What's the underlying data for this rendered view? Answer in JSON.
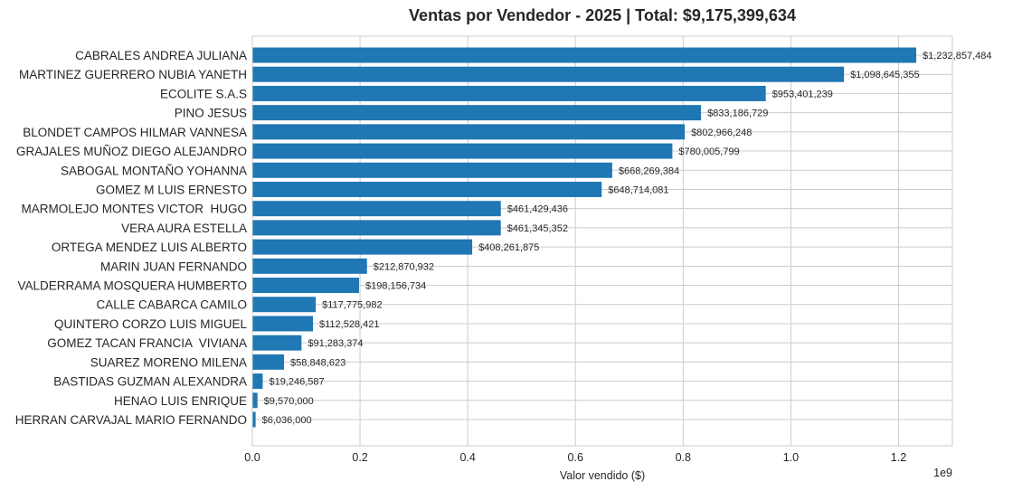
{
  "chart_data": {
    "type": "bar",
    "orientation": "horizontal",
    "title": "Ventas por Vendedor - 2025 | Total: $9,175,399,634",
    "xlabel": "Valor vendido ($)",
    "ylabel": "",
    "x_scale_note": "1e9",
    "xlim": [
      0,
      1.3
    ],
    "xticks": [
      0.0,
      0.2,
      0.4,
      0.6,
      0.8,
      1.0,
      1.2
    ],
    "xtick_labels": [
      "0.0",
      "0.2",
      "0.4",
      "0.6",
      "0.8",
      "1.0",
      "1.2"
    ],
    "grid": true,
    "bar_color": "#1f77b4",
    "categories": [
      "CABRALES ANDREA JULIANA",
      "MARTINEZ GUERRERO NUBIA YANETH",
      "ECOLITE S.A.S",
      "PINO JESUS",
      "BLONDET CAMPOS HILMAR VANNESA",
      "GRAJALES MUÑOZ DIEGO ALEJANDRO",
      "SABOGAL MONTAÑO YOHANNA",
      "GOMEZ M LUIS ERNESTO",
      "MARMOLEJO MONTES VICTOR  HUGO",
      "VERA AURA ESTELLA",
      "ORTEGA MENDEZ LUIS ALBERTO",
      "MARIN JUAN FERNANDO",
      "VALDERRAMA MOSQUERA HUMBERTO",
      "CALLE CABARCA CAMILO",
      "QUINTERO CORZO LUIS MIGUEL",
      "GOMEZ TACAN FRANCIA  VIVIANA",
      "SUAREZ MORENO MILENA",
      "BASTIDAS GUZMAN ALEXANDRA",
      "HENAO LUIS ENRIQUE",
      "HERRAN CARVAJAL MARIO FERNANDO"
    ],
    "values": [
      1232857484,
      1098645355,
      953401239,
      833186729,
      802966248,
      780005799,
      668269384,
      648714081,
      461429436,
      461345352,
      408261875,
      212870932,
      198156734,
      117775982,
      112528421,
      91283374,
      58848623,
      19246587,
      9570000,
      6036000
    ],
    "data_labels": [
      "$1,232,857,484",
      "$1,098,645,355",
      "$953,401,239",
      "$833,186,729",
      "$802,966,248",
      "$780,005,799",
      "$668,269,384",
      "$648,714,081",
      "$461,429,436",
      "$461,345,352",
      "$408,261,875",
      "$212,870,932",
      "$198,156,734",
      "$117,775,982",
      "$112,528,421",
      "$91,283,374",
      "$58,848,623",
      "$19,246,587",
      "$9,570,000",
      "$6,036,000"
    ]
  }
}
